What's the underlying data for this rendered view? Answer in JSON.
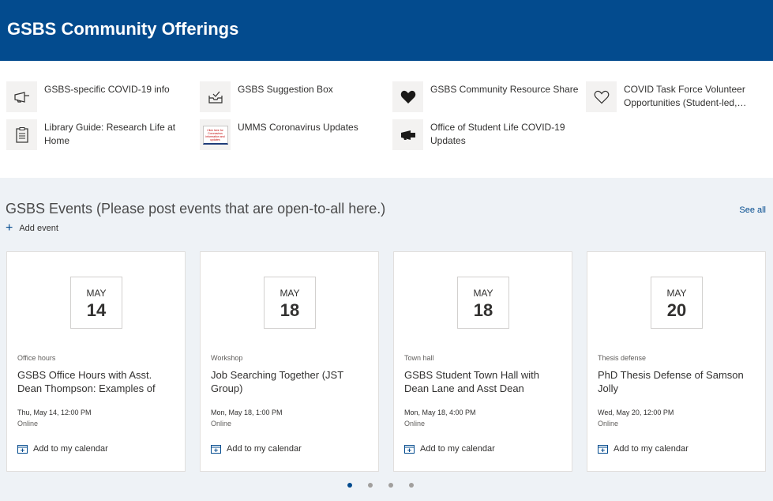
{
  "header": {
    "title": "GSBS Community Offerings"
  },
  "quick_links": [
    {
      "label": "GSBS-specific COVID-19 info",
      "icon": "megaphone-icon"
    },
    {
      "label": "GSBS Suggestion Box",
      "icon": "inbox-icon"
    },
    {
      "label": "GSBS Community Resource Share",
      "icon": "heart-filled-icon"
    },
    {
      "label": "COVID Task Force Volunteer Opportunities (Student-led,…",
      "icon": "heart-outline-icon"
    },
    {
      "label": "Library Guide: Research Life at Home",
      "icon": "clipboard-icon"
    },
    {
      "label": "UMMS Coronavirus Updates",
      "icon": "coronavirus-thumbnail",
      "thumbnail_text": "Click here for Coronavirus information and updates"
    },
    {
      "label": "Office of Student Life COVID-19 Updates",
      "icon": "megaphone-filled-icon"
    }
  ],
  "events": {
    "title": "GSBS Events (Please post events that are open-to-all here.)",
    "see_all": "See all",
    "add_event": "Add event",
    "add_calendar_label": "Add to my calendar",
    "items": [
      {
        "month": "MAY",
        "day": "14",
        "category": "Office hours",
        "title": "GSBS Office Hours with Asst. Dean Thompson: Examples of",
        "time": "Thu, May 14, 12:00 PM",
        "location": "Online"
      },
      {
        "month": "MAY",
        "day": "18",
        "category": "Workshop",
        "title": "Job Searching Together (JST Group)",
        "time": "Mon, May 18, 1:00 PM",
        "location": "Online"
      },
      {
        "month": "MAY",
        "day": "18",
        "category": "Town hall",
        "title": "GSBS Student Town Hall with Dean Lane and Asst Dean",
        "time": "Mon, May 18, 4:00 PM",
        "location": "Online"
      },
      {
        "month": "MAY",
        "day": "20",
        "category": "Thesis defense",
        "title": "PhD Thesis Defense of Samson Jolly",
        "time": "Wed, May 20, 12:00 PM",
        "location": "Online"
      }
    ],
    "pager": {
      "pages": 4,
      "current": 1
    }
  },
  "colors": {
    "brand": "#034b8e",
    "section_bg": "#eef2f6"
  }
}
